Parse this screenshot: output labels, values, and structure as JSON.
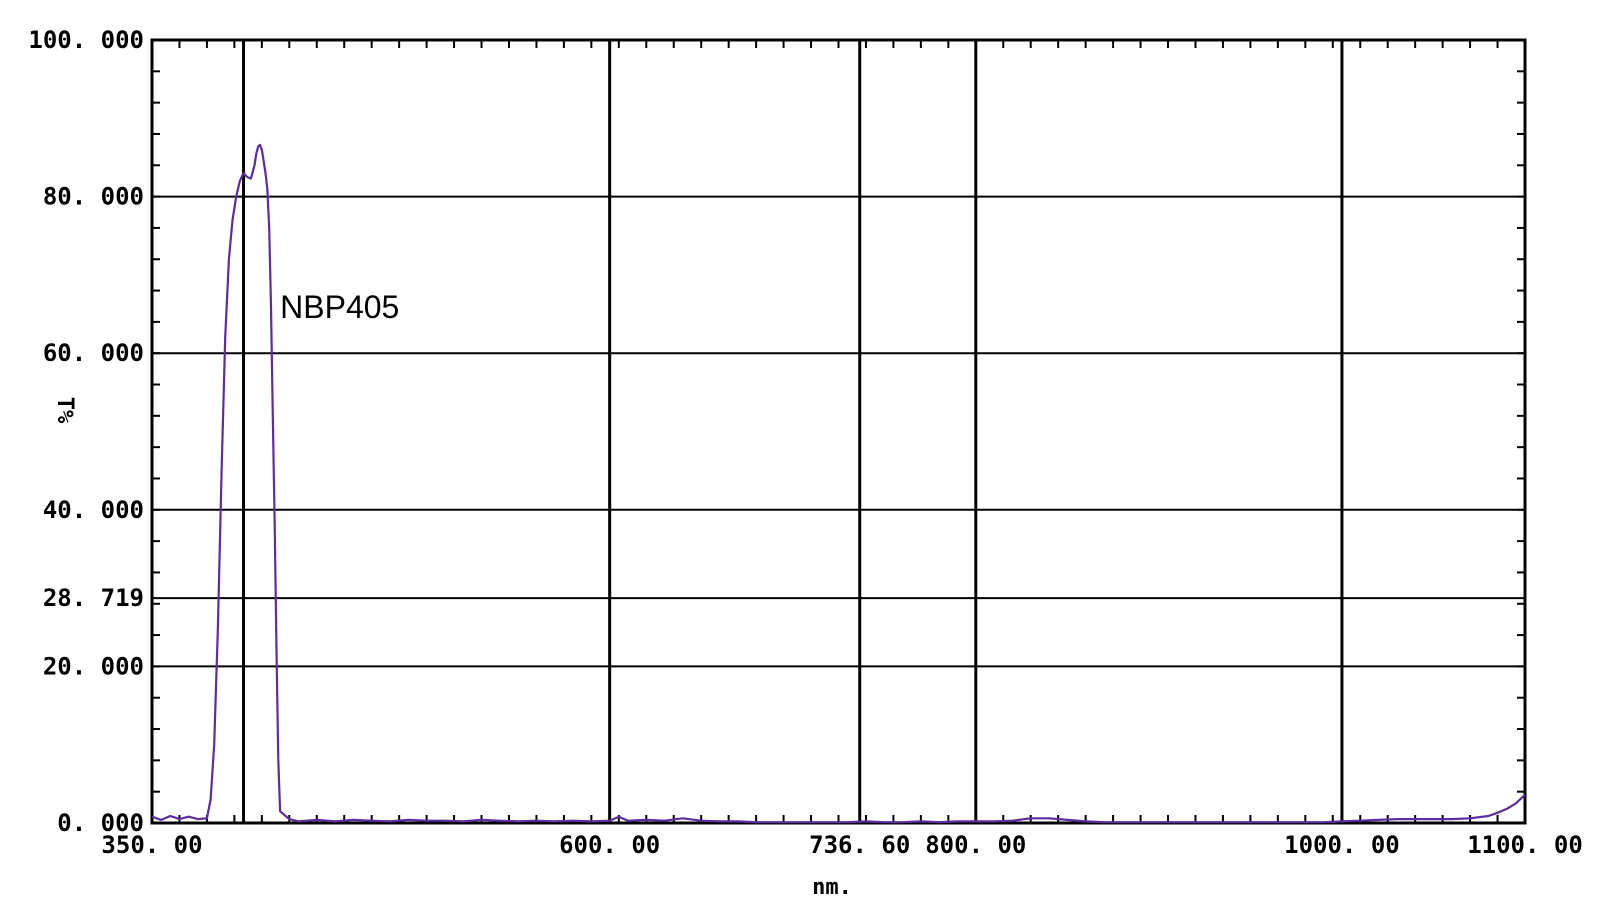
{
  "chart_data": {
    "type": "line",
    "title": "",
    "xlabel": "nm.",
    "ylabel": "T%",
    "xlim": [
      350,
      1100
    ],
    "ylim": [
      0,
      100
    ],
    "grid": true,
    "line_color": "#5b2d9e",
    "x_ticks": [
      {
        "value": 350,
        "label": "350. 00"
      },
      {
        "value": 600,
        "label": "600. 00"
      },
      {
        "value": 736.6,
        "label": "736. 60"
      },
      {
        "value": 800,
        "label": "800. 00"
      },
      {
        "value": 1000,
        "label": "1000. 00"
      },
      {
        "value": 1100,
        "label": "1100. 00"
      }
    ],
    "y_ticks": [
      {
        "value": 0,
        "label": "0. 000"
      },
      {
        "value": 20,
        "label": "20. 000"
      },
      {
        "value": 28.719,
        "label": "28. 719"
      },
      {
        "value": 40,
        "label": "40. 000"
      },
      {
        "value": 60,
        "label": "60. 000"
      },
      {
        "value": 80,
        "label": "80. 000"
      },
      {
        "value": 100,
        "label": "100. 000"
      }
    ],
    "extra_vline": 400,
    "annotation": {
      "text": "NBP405",
      "x": 420,
      "y": 66
    },
    "series": [
      {
        "x": [
          350,
          355,
          360,
          365,
          370,
          375,
          380,
          382,
          384,
          386,
          388,
          390,
          392,
          394,
          396,
          398,
          400,
          402,
          404,
          406,
          407,
          408,
          409,
          410,
          411,
          412,
          413,
          414,
          415,
          416,
          417,
          418,
          419,
          420,
          425,
          430,
          440,
          450,
          460,
          470,
          480,
          490,
          500,
          510,
          520,
          530,
          540,
          550,
          560,
          570,
          580,
          590,
          600,
          605,
          610,
          620,
          630,
          640,
          650,
          660,
          670,
          680,
          690,
          700,
          710,
          720,
          730,
          740,
          750,
          760,
          770,
          780,
          790,
          800,
          810,
          820,
          830,
          840,
          850,
          860,
          870,
          880,
          890,
          900,
          910,
          920,
          930,
          940,
          950,
          960,
          970,
          980,
          990,
          1000,
          1010,
          1020,
          1030,
          1040,
          1050,
          1060,
          1070,
          1080,
          1085,
          1090,
          1095,
          1100
        ],
        "values": [
          0.8,
          0.4,
          0.9,
          0.5,
          0.8,
          0.5,
          0.6,
          3,
          10,
          25,
          45,
          62,
          72,
          77,
          80,
          82,
          83,
          82.5,
          82.3,
          84,
          85.5,
          86.4,
          86.6,
          86,
          84.5,
          83,
          81,
          76,
          66,
          52,
          38,
          22,
          8,
          1.5,
          0.5,
          0.2,
          0.4,
          0.2,
          0.4,
          0.3,
          0.2,
          0.4,
          0.3,
          0.3,
          0.2,
          0.4,
          0.3,
          0.2,
          0.3,
          0.2,
          0.3,
          0.2,
          0.3,
          0.8,
          0.3,
          0.4,
          0.3,
          0.6,
          0.3,
          0.2,
          0.2,
          0.1,
          0.1,
          0.1,
          0.1,
          0.1,
          0.1,
          0.2,
          0.1,
          0.1,
          0.2,
          0.1,
          0.2,
          0.2,
          0.2,
          0.3,
          0.6,
          0.6,
          0.4,
          0.2,
          0.1,
          0.1,
          0.1,
          0.1,
          0.1,
          0.1,
          0.1,
          0.1,
          0.1,
          0.1,
          0.1,
          0.1,
          0.1,
          0.2,
          0.3,
          0.4,
          0.5,
          0.5,
          0.5,
          0.5,
          0.6,
          0.9,
          1.3,
          1.8,
          2.5,
          3.6
        ]
      }
    ]
  }
}
